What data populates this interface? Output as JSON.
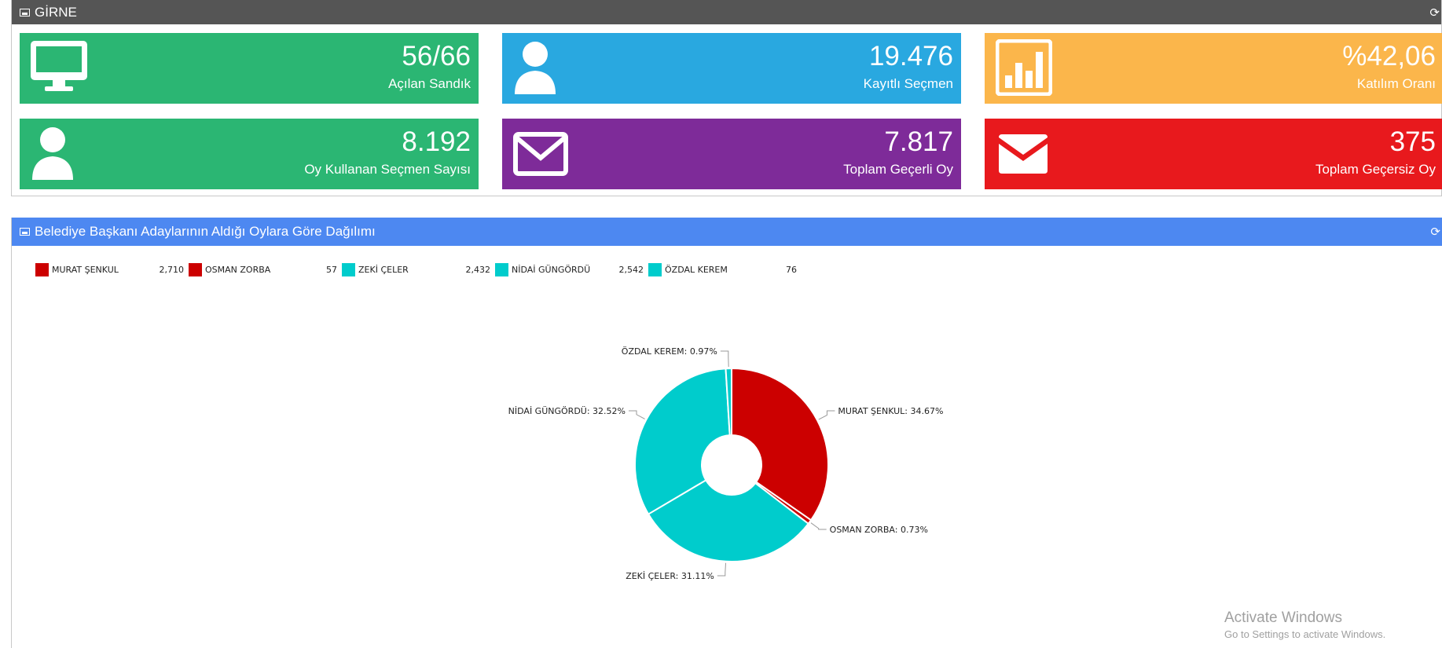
{
  "header": {
    "title": "GİRNE",
    "refresh_icon": "refresh-icon"
  },
  "tiles": [
    {
      "value": "56/66",
      "label": "Açılan Sandık",
      "color": "#2bb673",
      "icon": "monitor-icon"
    },
    {
      "value": "19.476",
      "label": "Kayıtlı Seçmen",
      "color": "#29a8e0",
      "icon": "user-icon"
    },
    {
      "value": "%42,06",
      "label": "Katılım Oranı",
      "color": "#fbb64b",
      "icon": "bar-chart-icon"
    },
    {
      "value": "8.192",
      "label": "Oy Kullanan Seçmen Sayısı",
      "color": "#2bb673",
      "icon": "user-icon"
    },
    {
      "value": "7.817",
      "label": "Toplam Geçerli Oy",
      "color": "#7e2b99",
      "icon": "envelope-outline-icon"
    },
    {
      "value": "375",
      "label": "Toplam Geçersiz Oy",
      "color": "#e8191d",
      "icon": "envelope-filled-icon"
    }
  ],
  "chart_panel": {
    "title": "Belediye Başkanı Adaylarının Aldığı Oylara Göre Dağılımı"
  },
  "chart_data": {
    "type": "pie",
    "donut": true,
    "title": "",
    "legend_position": "top-left",
    "categories": [
      "MURAT ŞENKUL",
      "OSMAN ZORBA",
      "ZEKİ ÇELER",
      "NİDAİ GÜNGÖRDÜ",
      "ÖZDAL KEREM"
    ],
    "values": [
      2710,
      57,
      2432,
      2542,
      76
    ],
    "value_labels": [
      "2,710",
      "57",
      "2,432",
      "2,542",
      "76"
    ],
    "percent_labels": [
      "MURAT ŞENKUL: 34.67%",
      "OSMAN ZORBA: 0.73%",
      "ZEKİ ÇELER: 31.11%",
      "NİDAİ GÜNGÖRDÜ: 32.52%",
      "ÖZDAL KEREM: 0.97%"
    ],
    "colors": [
      "#cc0000",
      "#cc0000",
      "#00cccc",
      "#00cccc",
      "#00cccc"
    ]
  },
  "watermark": {
    "line1": "Activate Windows",
    "line2": "Go to Settings to activate Windows."
  }
}
